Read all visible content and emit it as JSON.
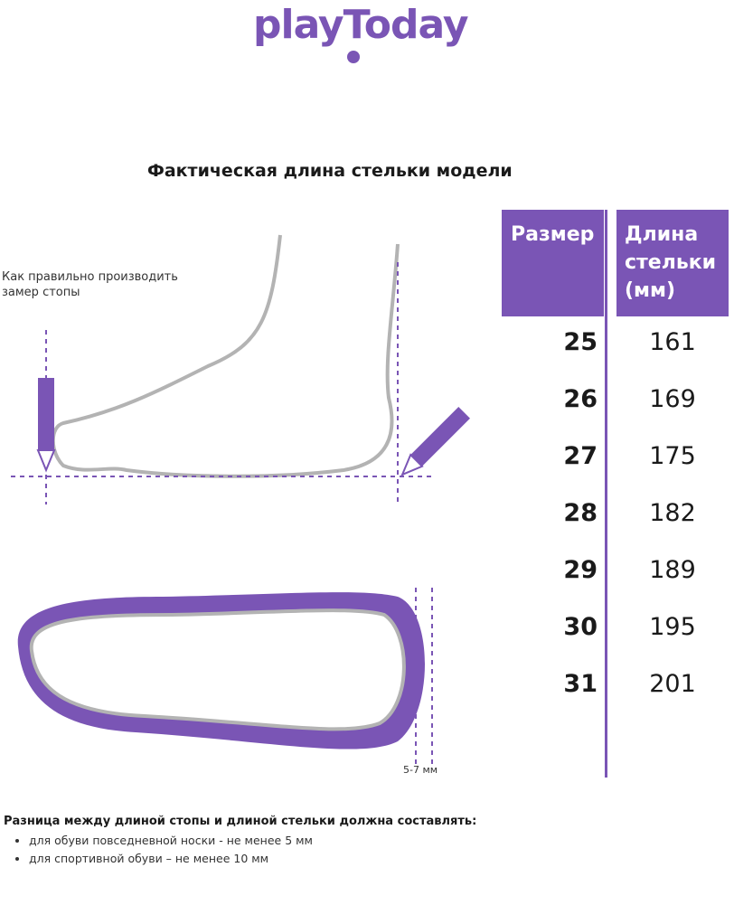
{
  "brand": {
    "logo_text": "playToday",
    "color": "#7a55b5"
  },
  "title": "Фактическая длина стельки модели",
  "table": {
    "headers": {
      "size": "Размер",
      "length_lines": [
        "Длина",
        "стельки",
        "(мм)"
      ]
    },
    "rows": [
      {
        "size": "25",
        "length": "161"
      },
      {
        "size": "26",
        "length": "169"
      },
      {
        "size": "27",
        "length": "175"
      },
      {
        "size": "28",
        "length": "182"
      },
      {
        "size": "29",
        "length": "189"
      },
      {
        "size": "30",
        "length": "195"
      },
      {
        "size": "31",
        "length": "201"
      }
    ]
  },
  "illustration": {
    "how_to_lines": [
      "Как правильно производить",
      "замер стопы"
    ],
    "gap_label": "5-7 мм"
  },
  "note": {
    "heading": "Разница между длиной стопы и длиной стельки должна составлять:",
    "bullets": [
      "для обуви повседневной носки -  не менее 5 мм",
      "для спортивной обуви – не менее 10 мм"
    ]
  }
}
